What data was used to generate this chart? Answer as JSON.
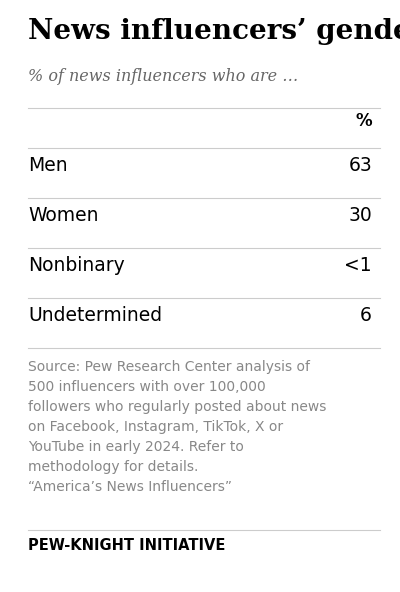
{
  "title": "News influencers’ gender",
  "subtitle": "% of news influencers who are …",
  "col_header": "%",
  "rows": [
    {
      "label": "Men",
      "value": "63"
    },
    {
      "label": "Women",
      "value": "30"
    },
    {
      "label": "Nonbinary",
      "value": "<1"
    },
    {
      "label": "Undetermined",
      "value": "6"
    }
  ],
  "source_text": "Source: Pew Research Center analysis of\n500 influencers with over 100,000\nfollowers who regularly posted about news\non Facebook, Instagram, TikTok, X or\nYouTube in early 2024. Refer to\nmethodology for details.\n“America’s News Influencers”",
  "footer": "PEW-KNIGHT INITIATIVE",
  "bg_color": "#ffffff",
  "title_color": "#000000",
  "subtitle_color": "#666666",
  "row_label_color": "#000000",
  "row_value_color": "#000000",
  "source_color": "#888888",
  "footer_color": "#000000",
  "divider_color": "#cccccc",
  "title_fontsize": 20,
  "subtitle_fontsize": 11.5,
  "col_header_fontsize": 12,
  "row_fontsize": 13.5,
  "source_fontsize": 10,
  "footer_fontsize": 10.5
}
